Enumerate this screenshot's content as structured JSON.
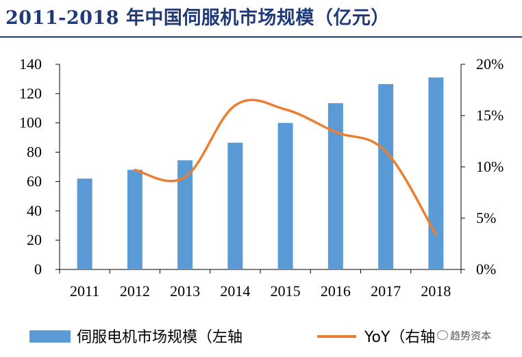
{
  "header": {
    "title": "2011-2018 年中国伺服机市场规模（亿元）"
  },
  "chart_data": {
    "type": "bar",
    "title": "2011-2018 年中国伺服机市场规模（亿元）",
    "categories": [
      "2011",
      "2012",
      "2013",
      "2014",
      "2015",
      "2016",
      "2017",
      "2018"
    ],
    "series": [
      {
        "name": "伺服电机市场规模（左轴",
        "type": "bar",
        "axis": "left",
        "color": "#5b9bd5",
        "values": [
          62,
          68,
          74.5,
          86.5,
          100,
          113.5,
          126.5,
          131
        ]
      },
      {
        "name": "YoY（右轴",
        "type": "line",
        "axis": "right",
        "color": "#ed7d31",
        "values": [
          null,
          0.097,
          0.09,
          0.16,
          0.156,
          0.134,
          0.115,
          0.034
        ]
      }
    ],
    "y_left": {
      "min": 0,
      "max": 140,
      "ticks": [
        "0",
        "20",
        "40",
        "60",
        "80",
        "100",
        "120",
        "140"
      ]
    },
    "y_right": {
      "min": 0,
      "max": 0.2,
      "ticks": [
        "0%",
        "5%",
        "10%",
        "15%",
        "20%"
      ]
    },
    "grid": false,
    "legend_position": "bottom"
  },
  "watermark": {
    "text": "趋势资本"
  }
}
